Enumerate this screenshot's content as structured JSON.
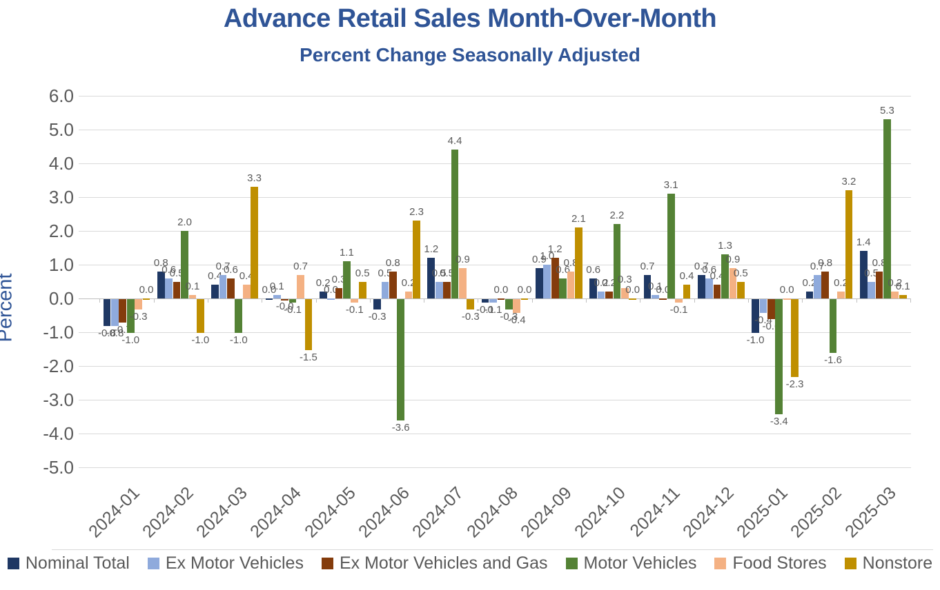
{
  "title": "Advance Retail Sales Month-Over-Month",
  "subtitle": "Percent Change Seasonally Adjusted",
  "colors": {
    "title_text": "#2F5496",
    "axis_text": "#595959",
    "data_label_text": "#595959",
    "gridline": "#D9D9D9",
    "axis_line": "#BFBFBF"
  },
  "chart_data": {
    "type": "bar",
    "title": "Advance Retail Sales Month-Over-Month",
    "subtitle": "Percent Change Seasonally Adjusted",
    "xlabel": "",
    "ylabel": "Percent",
    "ylim": [
      -5.0,
      6.0
    ],
    "ytick_step": 1.0,
    "grid": true,
    "legend_position": "bottom",
    "yticks": [
      "6.0",
      "5.0",
      "4.0",
      "3.0",
      "2.0",
      "1.0",
      "0.0",
      "-1.0",
      "-2.0",
      "-3.0",
      "-4.0",
      "-5.0"
    ],
    "categories": [
      "2024-01",
      "2024-02",
      "2024-03",
      "2024-04",
      "2024-05",
      "2024-06",
      "2024-07",
      "2024-08",
      "2024-09",
      "2024-10",
      "2024-11",
      "2024-12",
      "2025-01",
      "2025-02",
      "2025-03"
    ],
    "series": [
      {
        "name": "Nominal Total",
        "color": "#1F3864",
        "values": [
          -0.8,
          0.8,
          0.4,
          0.0,
          0.2,
          -0.3,
          1.2,
          -0.1,
          0.9,
          0.6,
          0.7,
          0.7,
          -1.0,
          0.2,
          1.4
        ],
        "labels": [
          "-0.8",
          "0.8",
          "0.4",
          "0.0",
          "0.2",
          "-0.3",
          "1.2",
          "-0.1",
          "0.9",
          "0.6",
          "0.7",
          "0.7",
          "-1.0",
          "0.2",
          "1.4"
        ]
      },
      {
        "name": "Ex Motor Vehicles",
        "color": "#8FAADC",
        "values": [
          -0.8,
          0.6,
          0.7,
          0.1,
          0.0,
          0.5,
          0.5,
          -0.1,
          1.0,
          0.2,
          0.1,
          0.6,
          -0.4,
          0.7,
          0.5
        ],
        "labels": [
          "-0.8",
          "0.6",
          "0.7",
          "0.1",
          "0.0",
          "0.5",
          "0.5",
          "-0.1",
          "1.0",
          "0.2",
          "0.1",
          "0.6",
          "-0.4",
          "0.7",
          "0.5"
        ]
      },
      {
        "name": "Ex Motor Vehicles and Gas",
        "color": "#843C0C",
        "values": [
          -0.7,
          0.5,
          0.6,
          -0.0,
          0.3,
          0.8,
          0.5,
          0.0,
          1.2,
          0.2,
          0.0,
          0.4,
          -0.6,
          0.8,
          0.8
        ],
        "labels": [
          "-0.7",
          "0.5",
          "0.6",
          "-0.0",
          "0.3",
          "0.8",
          "0.5",
          "0.0",
          "1.2",
          "0.2",
          "0.0",
          "0.4",
          "-0.6",
          "0.8",
          "0.8"
        ]
      },
      {
        "name": "Motor Vehicles",
        "color": "#548235",
        "values": [
          -1.0,
          2.0,
          -1.0,
          -0.1,
          1.1,
          -3.6,
          4.4,
          -0.3,
          0.6,
          2.2,
          3.1,
          1.3,
          -3.4,
          -1.6,
          5.3
        ],
        "labels": [
          "-1.0",
          "2.0",
          "-1.0",
          "-0.1",
          "1.1",
          "-3.6",
          "4.4",
          "-0.3",
          "0.6",
          "2.2",
          "3.1",
          "1.3",
          "-3.4",
          "-1.6",
          "5.3"
        ]
      },
      {
        "name": "Food Stores",
        "color": "#F4B183",
        "values": [
          -0.3,
          0.1,
          0.4,
          0.7,
          -0.1,
          0.2,
          0.9,
          -0.4,
          0.8,
          0.3,
          -0.1,
          0.9,
          0.0,
          0.2,
          0.2
        ],
        "labels": [
          "-0.3",
          "0.1",
          "0.4",
          "0.7",
          "-0.1",
          "0.2",
          "0.9",
          "-0.4",
          "0.8",
          "0.3",
          "-0.1",
          "0.9",
          "0.0",
          "0.2",
          "0.2"
        ]
      },
      {
        "name": "Nonstore",
        "color": "#BF8F00",
        "values": [
          0.0,
          -1.0,
          3.3,
          -1.5,
          0.5,
          2.3,
          -0.3,
          0.0,
          2.1,
          0.0,
          0.4,
          0.5,
          -2.3,
          3.2,
          0.1
        ],
        "labels": [
          "0.0",
          "-1.0",
          "3.3",
          "-1.5",
          "0.5",
          "2.3",
          "-0.3",
          "0.0",
          "2.1",
          "0.0",
          "0.4",
          "0.5",
          "-2.3",
          "3.2",
          "0.1"
        ]
      }
    ]
  }
}
